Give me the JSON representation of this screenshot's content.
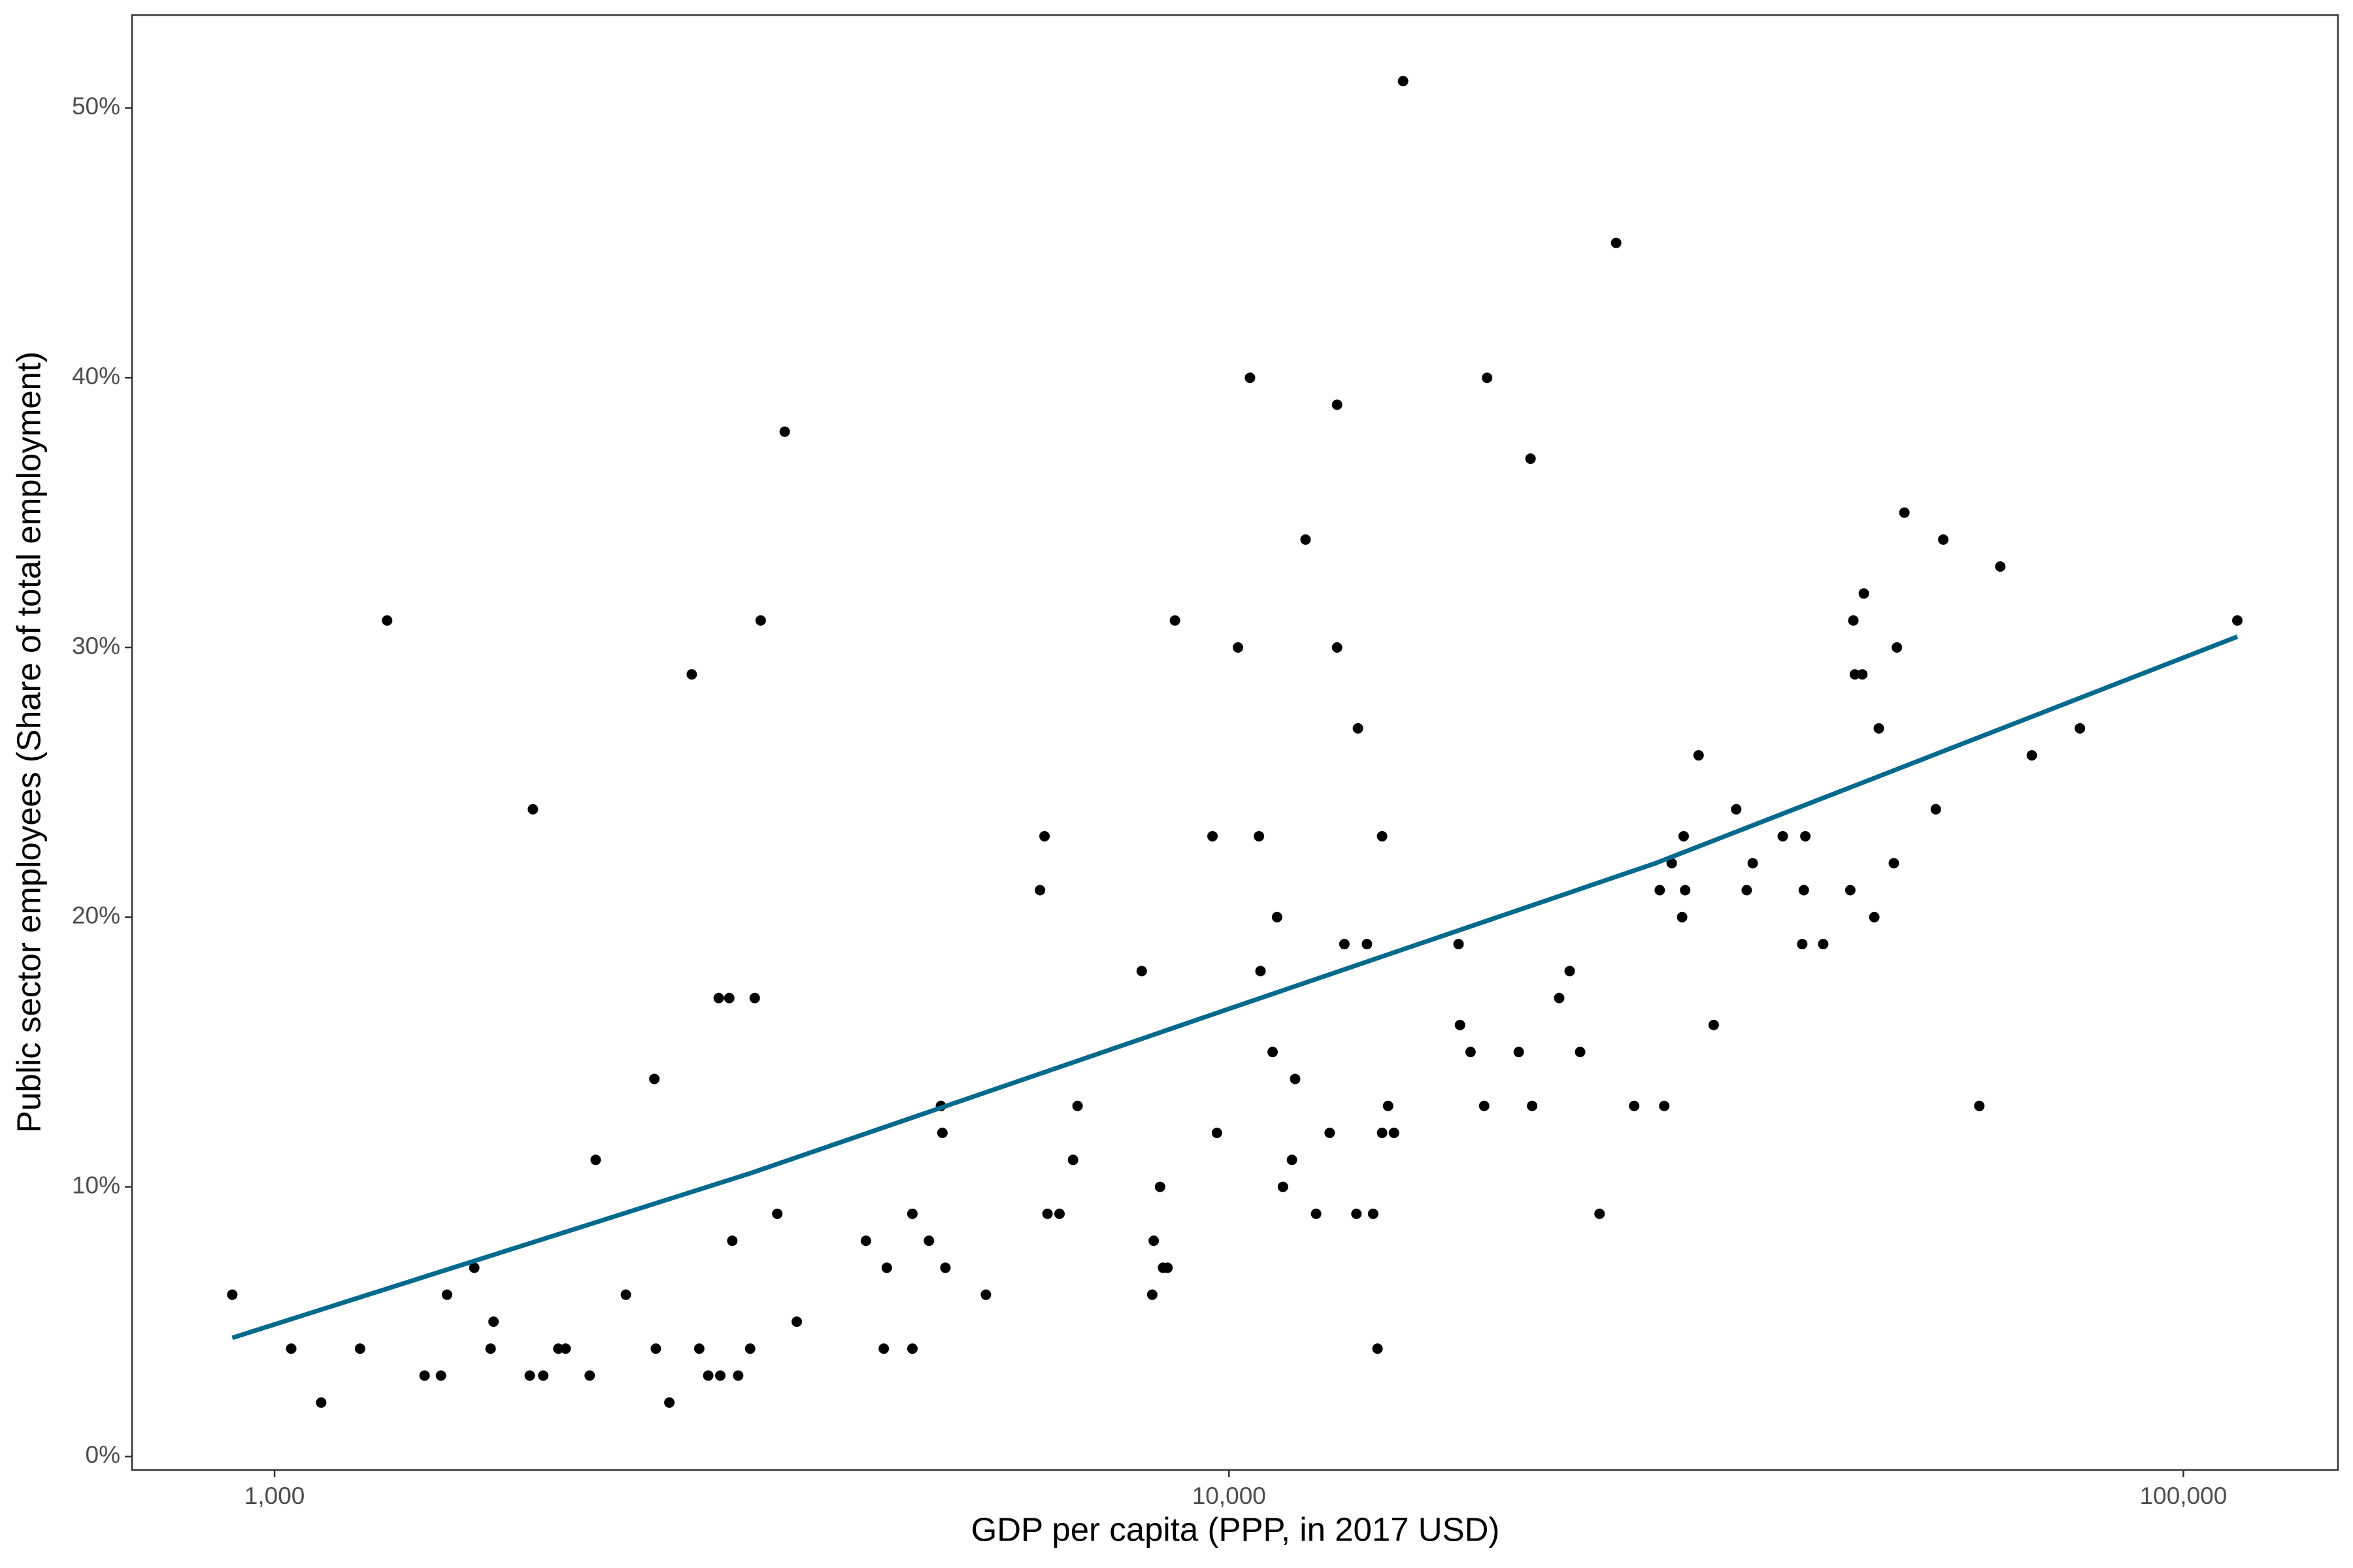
{
  "chart_data": {
    "type": "scatter",
    "xlabel": "GDP per capita (PPP, in 2017 USD)",
    "ylabel": "Public sector employees (Share of total employment)",
    "xscale": "log",
    "xlim": [
      709,
      145200
    ],
    "ylim": [
      -0.5,
      53.45
    ],
    "xticks": [
      {
        "value": 1000,
        "label": "1,000"
      },
      {
        "value": 10000,
        "label": "10,000"
      },
      {
        "value": 100000,
        "label": "100,000"
      }
    ],
    "yticks": [
      {
        "value": 0,
        "label": "0%"
      },
      {
        "value": 10,
        "label": "10%"
      },
      {
        "value": 20,
        "label": "20%"
      },
      {
        "value": 30,
        "label": "30%"
      },
      {
        "value": 40,
        "label": "40%"
      },
      {
        "value": 50,
        "label": "50%"
      }
    ],
    "grid": false,
    "series": [
      {
        "type": "scatter",
        "color": "#000000",
        "x": [
          903,
          1041,
          1119,
          1229,
          1312,
          1436,
          1494,
          1516,
          1619,
          1684,
          1696,
          1851,
          1865,
          1912,
          1983,
          2018,
          2139,
          2170,
          2334,
          2500,
          2509,
          2592,
          2736,
          2786,
          2847,
          2920,
          2931,
          2995,
          3017,
          3060,
          3150,
          3185,
          3231,
          3363,
          3424,
          3525,
          4165,
          4348,
          4380,
          4659,
          4659,
          4849,
          4991,
          5009,
          5045,
          5563,
          6339,
          6408,
          6454,
          6644,
          6865,
          6940,
          8102,
          8310,
          8340,
          8468,
          8529,
          8622,
          8778,
          9610,
          9714,
          10220,
          10520,
          10750,
          10790,
          11110,
          11230,
          11390,
          11640,
          11730,
          12030,
          12340,
          12750,
          12980,
          12980,
          13210,
          13600,
          13650,
          13950,
          14160,
          14310,
          14470,
          14470,
          14680,
          14890,
          15220,
          17400,
          17460,
          17910,
          18510,
          18640,
          20120,
          20700,
          20780,
          22180,
          22750,
          23330,
          24450,
          25450,
          26580,
          28270,
          28580,
          29100,
          29840,
          29950,
          30060,
          31050,
          32200,
          34000,
          34870,
          35380,
          38040,
          39870,
          40020,
          40170,
          41940,
          44770,
          45100,
          45270,
          46090,
          46260,
          47440,
          47960,
          49730,
          50100,
          51010,
          55030,
          56030,
          61120,
          64290,
          69380,
          77910,
          113900
        ],
        "values": [
          6,
          4,
          2,
          4,
          31,
          3,
          3,
          6,
          7,
          4,
          5,
          3,
          24,
          3,
          4,
          4,
          3,
          11,
          6,
          14,
          4,
          2,
          29,
          4,
          3,
          17,
          3,
          17,
          8,
          3,
          4,
          17,
          31,
          9,
          38,
          5,
          8,
          4,
          7,
          9,
          4,
          8,
          13,
          12,
          7,
          6,
          21,
          23,
          9,
          9,
          11,
          13,
          18,
          6,
          8,
          10,
          7,
          7,
          31,
          23,
          12,
          30,
          40,
          23,
          18,
          15,
          20,
          10,
          11,
          14,
          34,
          9,
          12,
          39,
          30,
          19,
          9,
          27,
          19,
          9,
          4,
          23,
          12,
          13,
          12,
          51,
          19,
          16,
          15,
          13,
          40,
          15,
          37,
          13,
          17,
          18,
          15,
          9,
          45,
          13,
          21,
          13,
          22,
          20,
          23,
          21,
          26,
          16,
          24,
          21,
          22,
          23,
          19,
          21,
          23,
          19,
          21,
          31,
          29,
          29,
          32,
          20,
          27,
          22,
          30,
          35,
          24,
          34,
          13,
          33,
          26,
          27,
          31
        ]
      },
      {
        "type": "line",
        "color": "#00698c",
        "x": [
          903,
          3150,
          10000,
          28000,
          113900
        ],
        "values": [
          4.4,
          10.5,
          16.6,
          22.0,
          30.4
        ]
      }
    ]
  }
}
